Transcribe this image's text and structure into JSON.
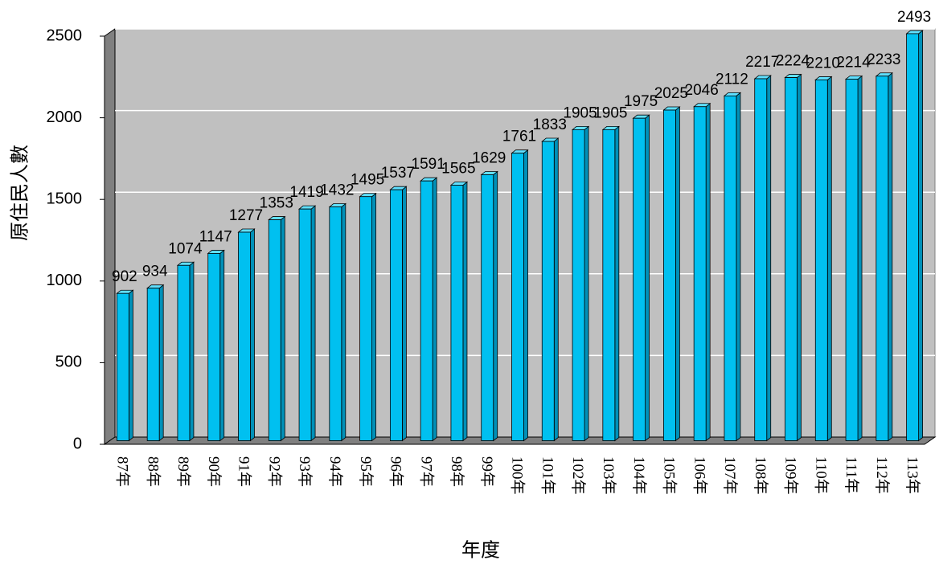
{
  "chart_data": {
    "type": "bar",
    "y_axis_label": "原住民人數",
    "x_axis_label": "年度",
    "categories": [
      "87年",
      "88年",
      "89年",
      "90年",
      "91年",
      "92年",
      "93年",
      "94年",
      "95年",
      "96年",
      "97年",
      "98年",
      "99年",
      "100年",
      "101年",
      "102年",
      "103年",
      "104年",
      "105年",
      "106年",
      "107年",
      "108年",
      "109年",
      "110年",
      "111年",
      "112年",
      "113年"
    ],
    "values": [
      902,
      934,
      1074,
      1147,
      1277,
      1353,
      1419,
      1432,
      1495,
      1537,
      1591,
      1565,
      1629,
      1761,
      1833,
      1905,
      1905,
      1975,
      2025,
      2046,
      2112,
      2217,
      2224,
      2210,
      2214,
      2233,
      2493
    ],
    "color": "#00c0f0",
    "ylim": [
      0,
      2500
    ],
    "yticks": [
      0,
      500,
      1000,
      1500,
      2000,
      2500
    ],
    "grid": true
  }
}
